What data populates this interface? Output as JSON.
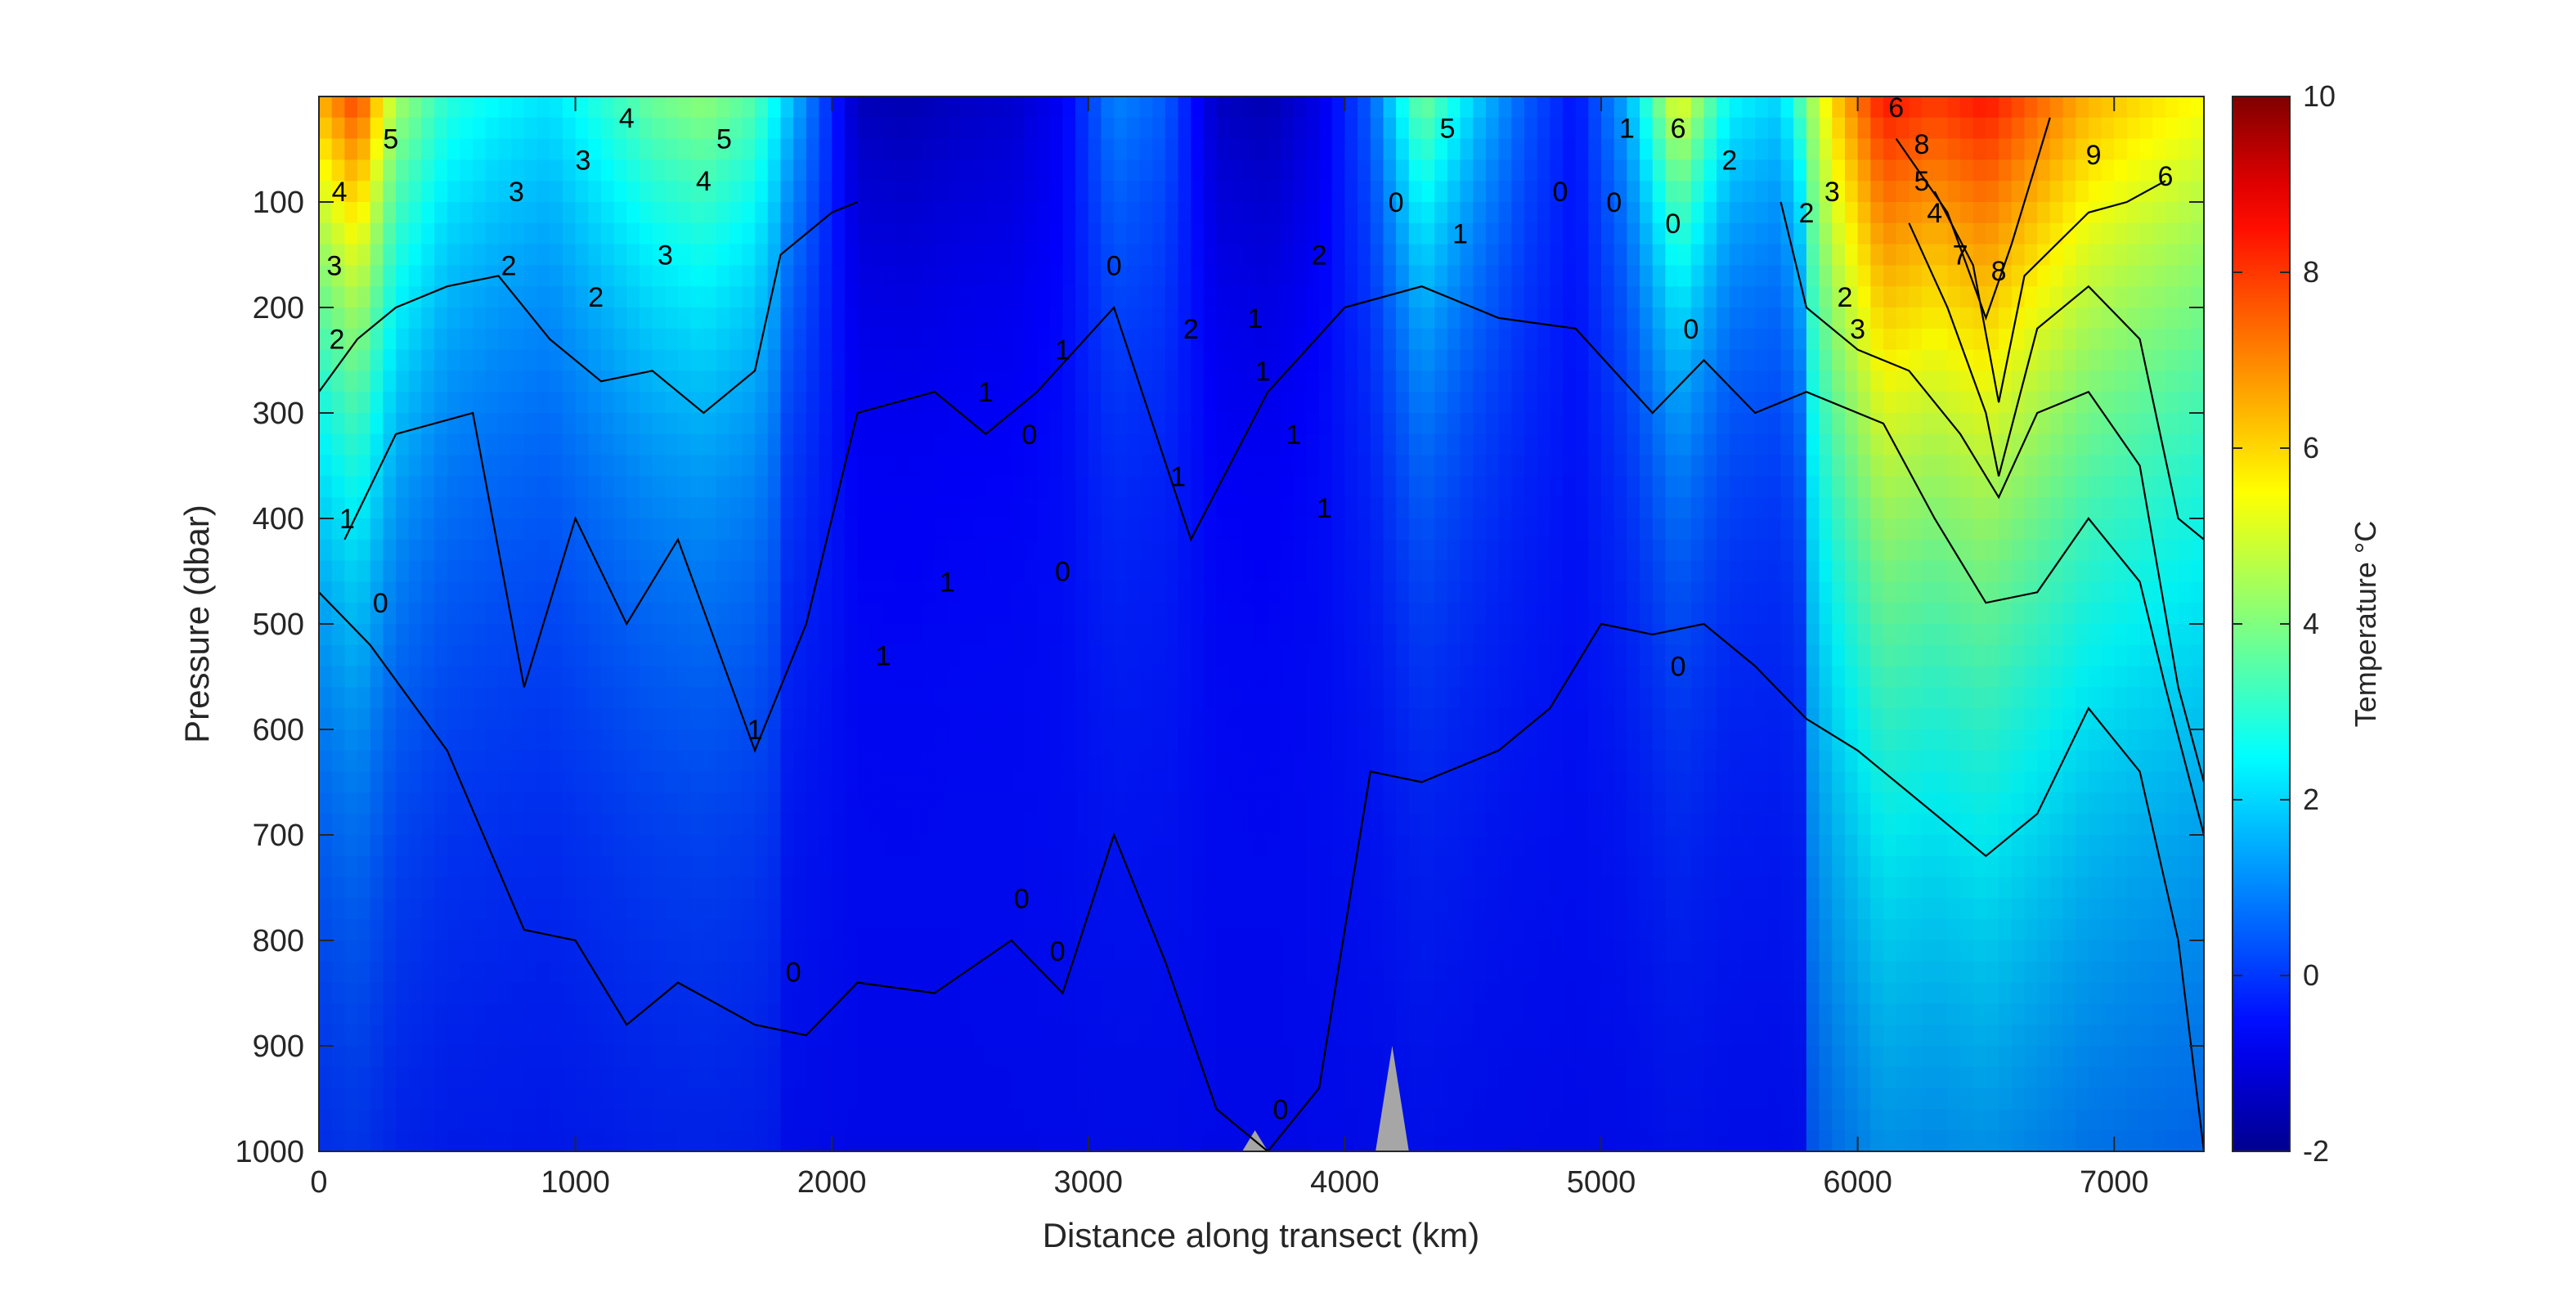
{
  "chart_data": {
    "type": "heatmap",
    "title": "",
    "xlabel": "Distance along transect (km)",
    "ylabel": "Pressure (dbar)",
    "xlim": [
      0,
      7350
    ],
    "ylim": [
      0,
      1000
    ],
    "y_reversed": true,
    "grid": false,
    "x_ticks": [
      0,
      1000,
      2000,
      3000,
      4000,
      5000,
      6000,
      7000
    ],
    "y_ticks": [
      100,
      200,
      300,
      400,
      500,
      600,
      700,
      800,
      900,
      1000
    ],
    "colorbar": {
      "label": "Temperature °C",
      "range": [
        -2,
        10
      ],
      "ticks": [
        -2,
        0,
        2,
        4,
        6,
        8,
        10
      ],
      "colormap": "jet",
      "colors": [
        "#00008f",
        "#0000ff",
        "#00ffff",
        "#ffff00",
        "#ff0000",
        "#800000"
      ]
    },
    "surface_columns": [
      {
        "x": 0,
        "t": 6.5
      },
      {
        "x": 150,
        "t": 8.0
      },
      {
        "x": 300,
        "t": 4.5
      },
      {
        "x": 500,
        "t": 3.0
      },
      {
        "x": 700,
        "t": 2.5
      },
      {
        "x": 900,
        "t": 2.2
      },
      {
        "x": 1100,
        "t": 3.0
      },
      {
        "x": 1300,
        "t": 3.8
      },
      {
        "x": 1500,
        "t": 4.2
      },
      {
        "x": 1700,
        "t": 3.5
      },
      {
        "x": 1900,
        "t": 1.0
      },
      {
        "x": 2100,
        "t": -1.5
      },
      {
        "x": 2300,
        "t": -1.6
      },
      {
        "x": 2500,
        "t": -1.4
      },
      {
        "x": 2700,
        "t": -1.3
      },
      {
        "x": 2900,
        "t": -0.8
      },
      {
        "x": 3100,
        "t": 1.0
      },
      {
        "x": 3300,
        "t": 0.5
      },
      {
        "x": 3500,
        "t": -1.4
      },
      {
        "x": 3700,
        "t": -1.6
      },
      {
        "x": 3900,
        "t": -1.0
      },
      {
        "x": 4100,
        "t": 0.5
      },
      {
        "x": 4300,
        "t": 4.0
      },
      {
        "x": 4500,
        "t": 2.0
      },
      {
        "x": 4700,
        "t": 0.5
      },
      {
        "x": 4900,
        "t": -0.5
      },
      {
        "x": 5100,
        "t": 1.5
      },
      {
        "x": 5300,
        "t": 5.5
      },
      {
        "x": 5500,
        "t": 2.5
      },
      {
        "x": 5700,
        "t": 2.0
      },
      {
        "x": 5900,
        "t": 6.0
      },
      {
        "x": 6100,
        "t": 8.5
      },
      {
        "x": 6300,
        "t": 8.0
      },
      {
        "x": 6500,
        "t": 8.5
      },
      {
        "x": 6700,
        "t": 7.5
      },
      {
        "x": 6900,
        "t": 6.5
      },
      {
        "x": 7100,
        "t": 6.0
      },
      {
        "x": 7350,
        "t": 5.5
      }
    ],
    "contours": [
      {
        "level": 0,
        "points": [
          [
            0,
            470
          ],
          [
            200,
            520
          ],
          [
            500,
            620
          ],
          [
            800,
            790
          ],
          [
            1000,
            800
          ],
          [
            1200,
            880
          ],
          [
            1400,
            840
          ],
          [
            1700,
            880
          ],
          [
            1900,
            890
          ],
          [
            2100,
            840
          ],
          [
            2400,
            850
          ],
          [
            2700,
            800
          ],
          [
            2900,
            850
          ],
          [
            3100,
            700
          ],
          [
            3300,
            820
          ],
          [
            3500,
            960
          ],
          [
            3700,
            1000
          ],
          [
            3900,
            940
          ],
          [
            4100,
            640
          ],
          [
            4300,
            650
          ],
          [
            4600,
            620
          ],
          [
            4800,
            580
          ],
          [
            5000,
            500
          ],
          [
            5200,
            510
          ],
          [
            5400,
            500
          ],
          [
            5600,
            540
          ],
          [
            5800,
            590
          ],
          [
            6000,
            620
          ],
          [
            6200,
            660
          ],
          [
            6500,
            720
          ],
          [
            6700,
            680
          ],
          [
            6900,
            580
          ],
          [
            7100,
            640
          ],
          [
            7250,
            800
          ],
          [
            7350,
            1000
          ]
        ]
      },
      {
        "level": 1,
        "points": [
          [
            100,
            420
          ],
          [
            300,
            320
          ],
          [
            600,
            300
          ],
          [
            800,
            560
          ],
          [
            1000,
            400
          ],
          [
            1200,
            500
          ],
          [
            1400,
            420
          ],
          [
            1700,
            620
          ],
          [
            1900,
            500
          ],
          [
            2100,
            300
          ],
          [
            2400,
            280
          ],
          [
            2600,
            320
          ],
          [
            2800,
            280
          ],
          [
            3100,
            200
          ],
          [
            3400,
            420
          ],
          [
            3700,
            280
          ],
          [
            4000,
            200
          ],
          [
            4300,
            180
          ],
          [
            4600,
            210
          ],
          [
            4900,
            220
          ],
          [
            5200,
            300
          ],
          [
            5400,
            250
          ],
          [
            5600,
            300
          ],
          [
            5800,
            280
          ],
          [
            6100,
            310
          ],
          [
            6300,
            400
          ],
          [
            6500,
            480
          ],
          [
            6700,
            470
          ],
          [
            6900,
            400
          ],
          [
            7100,
            460
          ],
          [
            7200,
            560
          ],
          [
            7350,
            700
          ]
        ]
      },
      {
        "level": 2,
        "points": [
          [
            0,
            280
          ],
          [
            150,
            230
          ],
          [
            300,
            200
          ],
          [
            500,
            180
          ],
          [
            700,
            170
          ],
          [
            900,
            230
          ],
          [
            1100,
            270
          ],
          [
            1300,
            260
          ],
          [
            1500,
            300
          ],
          [
            1700,
            260
          ],
          [
            1800,
            150
          ],
          [
            2000,
            110
          ],
          [
            2100,
            100
          ]
        ]
      },
      {
        "level": 2,
        "points": [
          [
            5700,
            100
          ],
          [
            5800,
            200
          ],
          [
            6000,
            240
          ],
          [
            6200,
            260
          ],
          [
            6400,
            320
          ],
          [
            6550,
            380
          ],
          [
            6700,
            300
          ],
          [
            6900,
            280
          ],
          [
            7100,
            350
          ],
          [
            7250,
            560
          ],
          [
            7350,
            650
          ]
        ]
      },
      {
        "level": 4,
        "points": [
          [
            6200,
            120
          ],
          [
            6350,
            200
          ],
          [
            6500,
            300
          ],
          [
            6550,
            360
          ],
          [
            6700,
            220
          ],
          [
            6900,
            180
          ],
          [
            7100,
            230
          ],
          [
            7250,
            400
          ],
          [
            7350,
            420
          ]
        ]
      },
      {
        "level": 6,
        "points": [
          [
            6300,
            90
          ],
          [
            6450,
            160
          ],
          [
            6550,
            290
          ],
          [
            6650,
            170
          ],
          [
            6900,
            110
          ],
          [
            7050,
            100
          ],
          [
            7200,
            80
          ]
        ]
      },
      {
        "level": 8,
        "points": [
          [
            6150,
            40
          ],
          [
            6350,
            110
          ],
          [
            6500,
            210
          ],
          [
            6600,
            140
          ],
          [
            6700,
            60
          ],
          [
            6750,
            20
          ]
        ]
      }
    ],
    "contour_labels": [
      {
        "text": "5",
        "x": 280,
        "y": 40
      },
      {
        "text": "4",
        "x": 80,
        "y": 90
      },
      {
        "text": "3",
        "x": 60,
        "y": 160
      },
      {
        "text": "2",
        "x": 70,
        "y": 230
      },
      {
        "text": "1",
        "x": 110,
        "y": 400
      },
      {
        "text": "0",
        "x": 240,
        "y": 480
      },
      {
        "text": "3",
        "x": 770,
        "y": 90
      },
      {
        "text": "2",
        "x": 740,
        "y": 160
      },
      {
        "text": "3",
        "x": 1030,
        "y": 60
      },
      {
        "text": "2",
        "x": 1080,
        "y": 190
      },
      {
        "text": "4",
        "x": 1200,
        "y": 20
      },
      {
        "text": "3",
        "x": 1350,
        "y": 150
      },
      {
        "text": "4",
        "x": 1500,
        "y": 80
      },
      {
        "text": "5",
        "x": 1580,
        "y": 40
      },
      {
        "text": "0",
        "x": 1850,
        "y": 830
      },
      {
        "text": "1",
        "x": 1700,
        "y": 600
      },
      {
        "text": "1",
        "x": 2200,
        "y": 530
      },
      {
        "text": "1",
        "x": 2450,
        "y": 460
      },
      {
        "text": "1",
        "x": 2600,
        "y": 280
      },
      {
        "text": "0",
        "x": 2770,
        "y": 320
      },
      {
        "text": "0",
        "x": 2900,
        "y": 450
      },
      {
        "text": "0",
        "x": 2740,
        "y": 760
      },
      {
        "text": "0",
        "x": 2880,
        "y": 810
      },
      {
        "text": "1",
        "x": 2900,
        "y": 240
      },
      {
        "text": "0",
        "x": 3100,
        "y": 160
      },
      {
        "text": "1",
        "x": 3350,
        "y": 360
      },
      {
        "text": "2",
        "x": 3400,
        "y": 220
      },
      {
        "text": "1",
        "x": 3650,
        "y": 210
      },
      {
        "text": "1",
        "x": 3680,
        "y": 260
      },
      {
        "text": "1",
        "x": 3800,
        "y": 320
      },
      {
        "text": "1",
        "x": 3920,
        "y": 390
      },
      {
        "text": "2",
        "x": 3900,
        "y": 150
      },
      {
        "text": "0",
        "x": 3750,
        "y": 960
      },
      {
        "text": "0",
        "x": 4200,
        "y": 100
      },
      {
        "text": "1",
        "x": 4450,
        "y": 130
      },
      {
        "text": "5",
        "x": 4400,
        "y": 30
      },
      {
        "text": "0",
        "x": 4840,
        "y": 90
      },
      {
        "text": "0",
        "x": 5050,
        "y": 100
      },
      {
        "text": "0",
        "x": 5280,
        "y": 120
      },
      {
        "text": "0",
        "x": 5350,
        "y": 220
      },
      {
        "text": "0",
        "x": 5300,
        "y": 540
      },
      {
        "text": "1",
        "x": 5100,
        "y": 30
      },
      {
        "text": "6",
        "x": 5300,
        "y": 30
      },
      {
        "text": "2",
        "x": 5500,
        "y": 60
      },
      {
        "text": "2",
        "x": 5800,
        "y": 110
      },
      {
        "text": "3",
        "x": 5900,
        "y": 90
      },
      {
        "text": "2",
        "x": 5950,
        "y": 190
      },
      {
        "text": "3",
        "x": 6000,
        "y": 220
      },
      {
        "text": "4",
        "x": 6300,
        "y": 110
      },
      {
        "text": "5",
        "x": 6250,
        "y": 80
      },
      {
        "text": "6",
        "x": 6150,
        "y": 10
      },
      {
        "text": "8",
        "x": 6250,
        "y": 45
      },
      {
        "text": "8",
        "x": 6550,
        "y": 165
      },
      {
        "text": "7",
        "x": 6400,
        "y": 150
      },
      {
        "text": "9",
        "x": 6920,
        "y": 55
      },
      {
        "text": "6",
        "x": 7200,
        "y": 75
      }
    ],
    "bathymetry": [
      {
        "x_start": 3600,
        "x_end": 3700,
        "peak": 980
      },
      {
        "x_start": 4120,
        "x_end": 4250,
        "peak": 900
      }
    ]
  }
}
